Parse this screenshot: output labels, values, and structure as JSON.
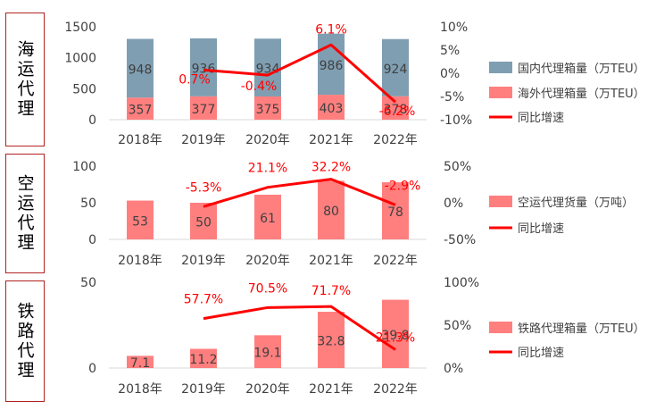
{
  "panels": [
    {
      "label": "海运代理"
    },
    {
      "label": "空运代理"
    },
    {
      "label": "铁路代理"
    }
  ],
  "colors": {
    "domestic": "#7f9eb2",
    "overseas": "#ff7f7f",
    "growth_line": "#ff0000",
    "growth_label": "#ff0000"
  },
  "chart_data": [
    {
      "type": "bar",
      "stacked": true,
      "categories": [
        "2018年",
        "2019年",
        "2020年",
        "2021年",
        "2022年"
      ],
      "series": [
        {
          "name": "国内代理箱量（万TEU）",
          "values": [
            948,
            936,
            934,
            986,
            924
          ],
          "color": "#7f9eb2"
        },
        {
          "name": "海外代理箱量（万TEU）",
          "values": [
            357,
            377,
            375,
            403,
            378
          ],
          "color": "#ff7f7f"
        }
      ],
      "line_series": {
        "name": "同比增速",
        "values": [
          null,
          0.7,
          -0.4,
          6.1,
          -6.2
        ],
        "labels": [
          "",
          "0.7%",
          "-0.4%",
          "6.1%",
          "-6.2%"
        ]
      },
      "y_ticks": [
        "1500",
        "1000",
        "500",
        "0"
      ],
      "y2_ticks": [
        "10%",
        "5%",
        "0%",
        "-5%",
        "-10%"
      ],
      "ylim": [
        0,
        1500
      ],
      "y2lim": [
        -10,
        10
      ],
      "legend_position": "right",
      "grid": false
    },
    {
      "type": "bar",
      "categories": [
        "2018年",
        "2019年",
        "2020年",
        "2021年",
        "2022年"
      ],
      "series": [
        {
          "name": "空运代理货量（万吨）",
          "values": [
            53,
            50,
            61,
            80,
            78
          ],
          "color": "#ff7f7f"
        }
      ],
      "line_series": {
        "name": "同比增速",
        "values": [
          null,
          -5.3,
          21.1,
          32.2,
          -2.9
        ],
        "labels": [
          "",
          "-5.3%",
          "21.1%",
          "32.2%",
          "-2.9%"
        ]
      },
      "y_ticks": [
        "100",
        "50",
        "0"
      ],
      "y2_ticks": [
        "50%",
        "0%",
        "-50%"
      ],
      "ylim": [
        0,
        100
      ],
      "y2lim": [
        -50,
        50
      ],
      "legend_position": "right",
      "grid": false
    },
    {
      "type": "bar",
      "categories": [
        "2018年",
        "2019年",
        "2020年",
        "2021年",
        "2022年"
      ],
      "series": [
        {
          "name": "铁路代理箱量（万TEU）",
          "values": [
            7.1,
            11.2,
            19.1,
            32.8,
            39.8
          ],
          "color": "#ff7f7f"
        }
      ],
      "line_series": {
        "name": "同比增速",
        "values": [
          null,
          57.7,
          70.5,
          71.7,
          21.3
        ],
        "labels": [
          "",
          "57.7%",
          "70.5%",
          "71.7%",
          "21.3%"
        ]
      },
      "y_ticks": [
        "50",
        "0"
      ],
      "y2_ticks": [
        "100%",
        "50%",
        "0%"
      ],
      "ylim": [
        0,
        50
      ],
      "y2lim": [
        0,
        100
      ],
      "legend_position": "right",
      "grid": false
    }
  ]
}
